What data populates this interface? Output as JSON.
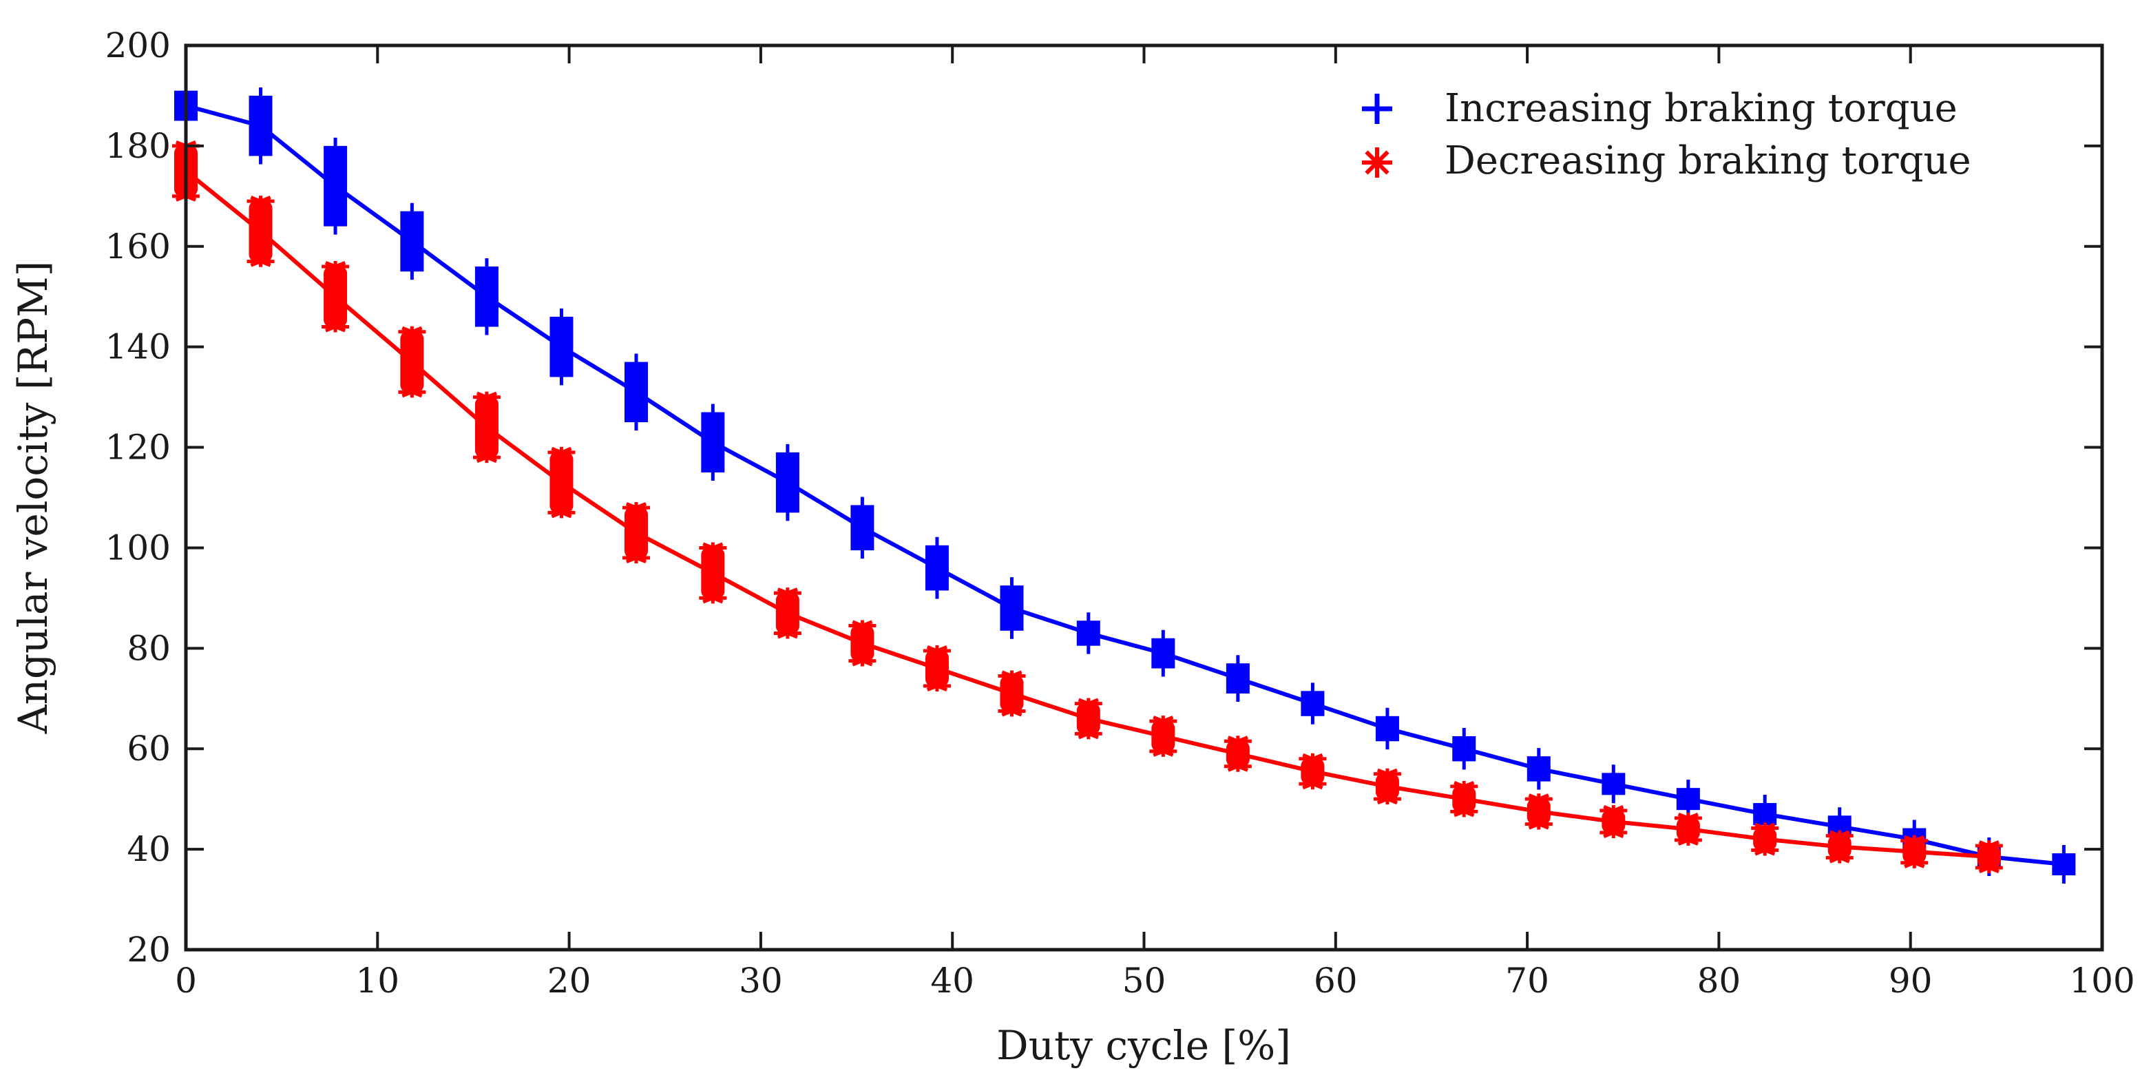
{
  "chart_data": {
    "type": "line",
    "title": "",
    "xlabel": "Duty cycle [%]",
    "ylabel": "Angular velocity [RPM]",
    "xlim": [
      0,
      100
    ],
    "ylim": [
      20,
      200
    ],
    "xticks": [
      0,
      10,
      20,
      30,
      40,
      50,
      60,
      70,
      80,
      90,
      100
    ],
    "yticks": [
      20,
      40,
      60,
      80,
      100,
      120,
      140,
      160,
      180,
      200
    ],
    "grid": false,
    "legend_position": "top-right",
    "series": [
      {
        "name": "Increasing braking torque",
        "color": "#0000ff",
        "marker": "plus",
        "x": [
          0,
          3.9,
          7.8,
          11.8,
          15.7,
          19.6,
          23.5,
          27.5,
          31.4,
          35.3,
          39.2,
          43.1,
          47.1,
          51.0,
          54.9,
          58.8,
          62.7,
          66.7,
          70.6,
          74.5,
          78.4,
          82.4,
          86.3,
          90.2,
          94.1,
          98.0
        ],
        "y": [
          188,
          184,
          172,
          161,
          150,
          140,
          131,
          121,
          113,
          104,
          96,
          88,
          83,
          79,
          74,
          69,
          64,
          60,
          56,
          53,
          50,
          47,
          44.5,
          42,
          38.5,
          37
        ],
        "spread": [
          3,
          6,
          8,
          6,
          6,
          6,
          6,
          6,
          6,
          4.5,
          4.5,
          4.5,
          2.5,
          3,
          3,
          2.5,
          2.5,
          2.5,
          2.5,
          2,
          2,
          2,
          2,
          2,
          2,
          1.5
        ]
      },
      {
        "name": "Decreasing braking torque",
        "color": "#ff0000",
        "marker": "asterisk",
        "x": [
          0,
          3.9,
          7.8,
          11.8,
          15.7,
          19.6,
          23.5,
          27.5,
          31.4,
          35.3,
          39.2,
          43.1,
          47.1,
          51.0,
          54.9,
          58.8,
          62.7,
          66.7,
          70.6,
          74.5,
          78.4,
          82.4,
          86.3,
          90.2,
          94.1
        ],
        "y": [
          175,
          163,
          150,
          137,
          124,
          113,
          103,
          95,
          87,
          81,
          76,
          71,
          66,
          62.5,
          59,
          55.5,
          52.5,
          50,
          47.5,
          45.5,
          44,
          42,
          40.5,
          39.5,
          38.5
        ],
        "spread": [
          5,
          6,
          6,
          6,
          6,
          6,
          5,
          5,
          4,
          3.5,
          3.5,
          3.5,
          3,
          3,
          2.5,
          2.5,
          2.5,
          2.5,
          2.5,
          2,
          1.5,
          2,
          2,
          1.5,
          1.5
        ]
      }
    ]
  }
}
